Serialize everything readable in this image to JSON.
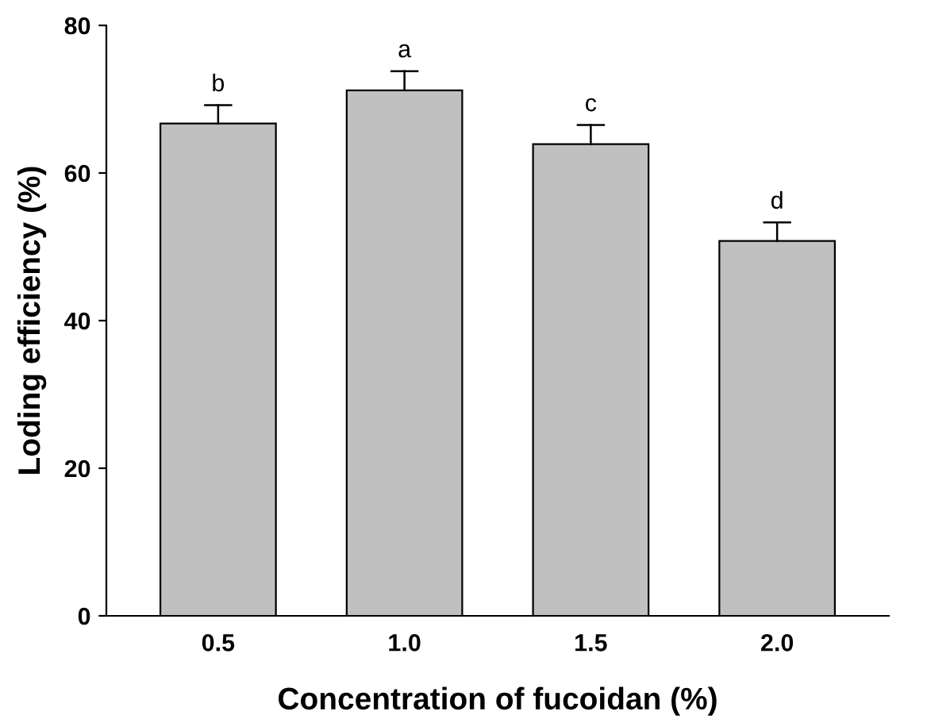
{
  "chart_data": {
    "type": "bar",
    "xlabel": "Concentration of fucoidan (%)",
    "ylabel": "Loding efficiency (%)",
    "categories": [
      "0.5",
      "1.0",
      "1.5",
      "2.0"
    ],
    "values": [
      66.7,
      71.2,
      63.9,
      50.8
    ],
    "errors": [
      [
        66.7,
        69.2
      ],
      [
        71.2,
        73.8
      ],
      [
        63.9,
        66.5
      ],
      [
        50.8,
        53.3
      ]
    ],
    "color": "#c0c0c0",
    "ylim": [
      0,
      80
    ],
    "yticks": [
      0,
      20,
      40,
      60,
      80
    ],
    "grid": false,
    "legend": false,
    "annotations": [
      {
        "text": "b",
        "x": "0.5",
        "y": 69.2
      },
      {
        "text": "a",
        "x": "1.0",
        "y": 73.8
      },
      {
        "text": "c",
        "x": "1.5",
        "y": 66.5
      },
      {
        "text": "d",
        "x": "2.0",
        "y": 53.3
      }
    ]
  }
}
